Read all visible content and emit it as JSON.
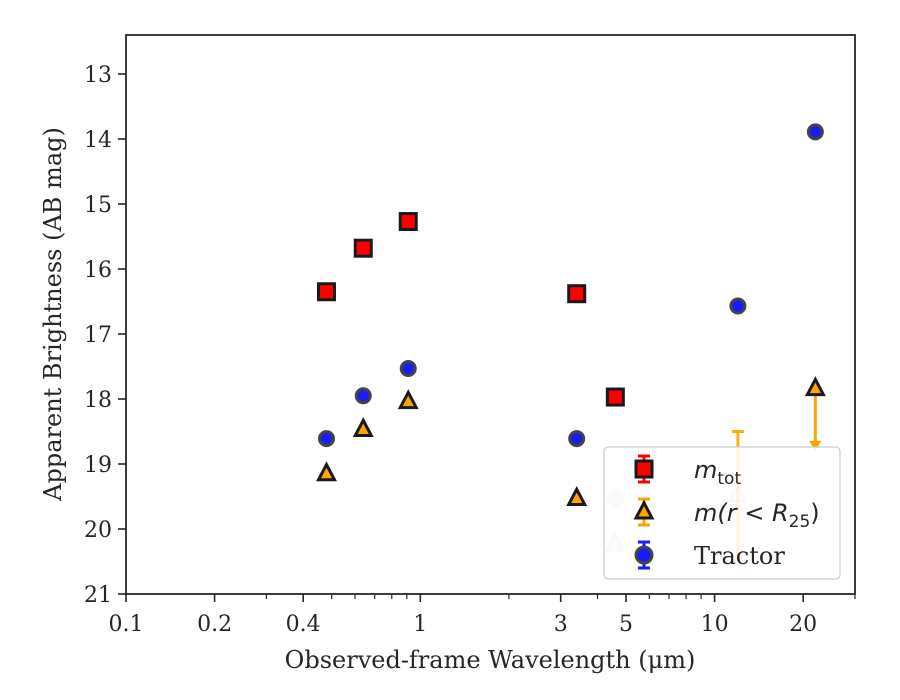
{
  "chart_data": {
    "type": "scatter",
    "xlabel": "Observed-frame Wavelength (μm)",
    "ylabel": "Apparent Brightness (AB mag)",
    "xscale": "log",
    "xlim": [
      0.1,
      30
    ],
    "ylim": [
      21,
      12.4
    ],
    "y_inverted": true,
    "x_ticks": [
      0.1,
      0.2,
      0.4,
      1,
      3,
      5,
      10,
      20
    ],
    "x_tick_labels": [
      "0.1",
      "0.2",
      "0.4",
      "1",
      "3",
      "5",
      "10",
      "20"
    ],
    "y_ticks": [
      13,
      14,
      15,
      16,
      17,
      18,
      19,
      20,
      21
    ],
    "y_tick_labels": [
      "13",
      "14",
      "15",
      "16",
      "17",
      "18",
      "19",
      "20",
      "21"
    ],
    "legend": {
      "placement": "lower-right",
      "entries": [
        {
          "series": "m_tot",
          "label_main": "m",
          "label_sub": "tot"
        },
        {
          "series": "m_r25",
          "label_main": "m(r < R",
          "label_sub": "25",
          "label_tail": ")"
        },
        {
          "series": "tractor",
          "label_main": "Tractor"
        }
      ]
    },
    "series": [
      {
        "id": "m_tot",
        "marker": "square",
        "color": "#ff0000",
        "edge": "#1a1a1a",
        "error_color": "#ff0000",
        "points": [
          {
            "x": 0.48,
            "y": 16.35
          },
          {
            "x": 0.64,
            "y": 15.68
          },
          {
            "x": 0.91,
            "y": 15.27
          },
          {
            "x": 3.4,
            "y": 16.38
          },
          {
            "x": 4.6,
            "y": 17.97
          }
        ]
      },
      {
        "id": "m_r25",
        "marker": "triangle",
        "color": "#ffa500",
        "edge": "#1a1a1a",
        "error_color": "#ffa500",
        "points": [
          {
            "x": 0.48,
            "y": 19.15
          },
          {
            "x": 0.64,
            "y": 18.47
          },
          {
            "x": 0.91,
            "y": 18.04
          },
          {
            "x": 3.4,
            "y": 19.53
          },
          {
            "x": 4.6,
            "y": 20.23,
            "faded": true
          },
          {
            "x": 12.0,
            "y": 19.48,
            "faded": true,
            "yerr": [
              18.5,
              20.5
            ]
          },
          {
            "x": 22.0,
            "y": 17.84,
            "upper_limit_to": 18.8
          }
        ]
      },
      {
        "id": "tractor",
        "marker": "circle",
        "color": "#1a1aff",
        "edge": "#444444",
        "error_color": "#1a1aff",
        "points": [
          {
            "x": 0.48,
            "y": 18.61
          },
          {
            "x": 0.64,
            "y": 17.95
          },
          {
            "x": 0.91,
            "y": 17.53
          },
          {
            "x": 3.4,
            "y": 18.61
          },
          {
            "x": 4.6,
            "y": 19.53,
            "faded": true
          },
          {
            "x": 12.0,
            "y": 16.57
          },
          {
            "x": 22.0,
            "y": 13.89
          }
        ]
      }
    ]
  }
}
